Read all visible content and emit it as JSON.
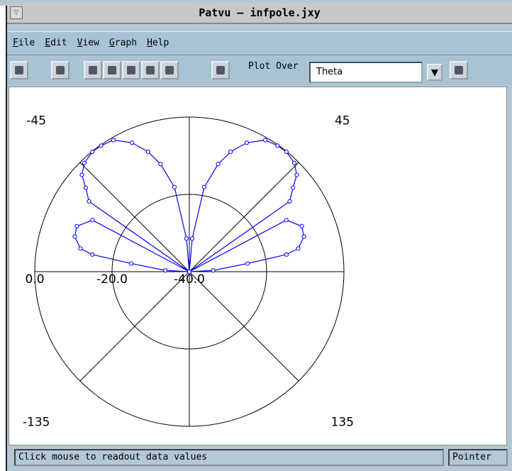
{
  "window": {
    "title": "Patvu – infpole.jxy"
  },
  "menu": [
    "File",
    "Edit",
    "View",
    "Graph",
    "Help"
  ],
  "toolbar": {
    "plot_over_label": "Plot Over",
    "field_value": "Theta"
  },
  "status": {
    "message": "Click mouse to readout data values",
    "mode": "Pointer"
  },
  "chart_data": {
    "type": "polar",
    "color": "#0000ff",
    "rlim": [
      -40,
      0
    ],
    "rticks": [
      {
        "value": 0,
        "label": "0.0"
      },
      {
        "value": -20,
        "label": "-20.0"
      },
      {
        "value": -40,
        "label": "-40.0"
      }
    ],
    "angle_ticks": [
      -45,
      45,
      -135,
      135
    ],
    "theta": [
      -90,
      -87,
      -82,
      -80,
      -78,
      -73,
      -68,
      -62,
      -58,
      -55,
      -51,
      -48,
      -44,
      -39,
      -35,
      -30,
      -24,
      -19,
      -15,
      -10,
      -5,
      0,
      5,
      10,
      15,
      19,
      24,
      30,
      35,
      39,
      44,
      48,
      51,
      55,
      58,
      62,
      68,
      73,
      78,
      80,
      82,
      87,
      90
    ],
    "values": [
      -40,
      -33.8,
      -24.8,
      -14.5,
      -11.2,
      -9.0,
      -8.6,
      -11.6,
      -40,
      -8.3,
      -5.5,
      -2.6,
      -0.9,
      -0.1,
      -0.2,
      -0.7,
      -3.5,
      -7.2,
      -11.2,
      -17.8,
      -31.4,
      -40,
      -31.4,
      -17.8,
      -11.2,
      -7.2,
      -3.5,
      -0.7,
      -0.2,
      -0.1,
      -0.9,
      -2.6,
      -5.5,
      -8.3,
      -40,
      -11.6,
      -8.6,
      -9.0,
      -11.2,
      -14.5,
      -24.8,
      -33.8,
      -40
    ]
  }
}
